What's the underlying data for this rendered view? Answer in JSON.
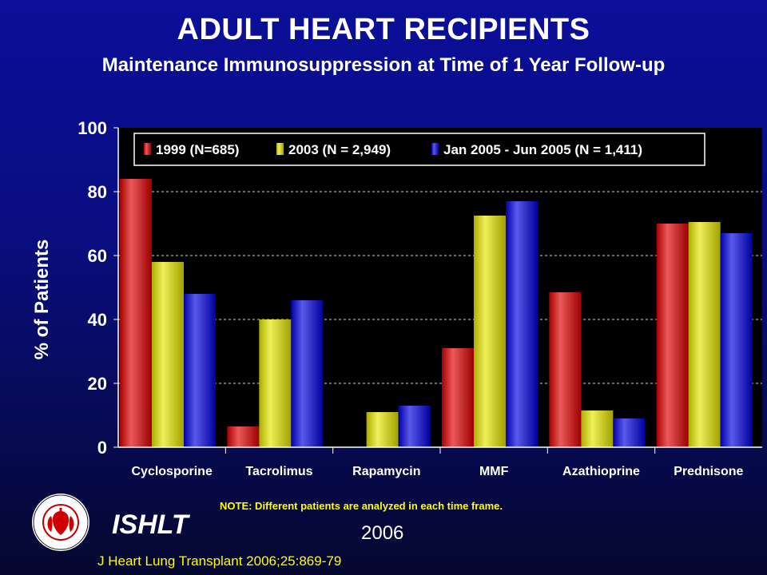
{
  "header": {
    "title": "ADULT HEART RECIPIENTS",
    "subtitle": "Maintenance Immunosuppression at Time of 1 Year Follow-up"
  },
  "footer": {
    "note": "NOTE: Different patients are analyzed in each time frame.",
    "org": "ISHLT",
    "year": "2006",
    "citation": "J Heart Lung Transplant 2006;25:869-79",
    "logo_ring_text": "INTERNATIONAL SOCIETY FOR HEART & LUNG TRANSPLANTATION"
  },
  "colors": {
    "red": "#e00000",
    "yellow": "#e6e600",
    "blue": "#0000e0",
    "plot_bg": "#000000"
  },
  "chart_data": {
    "type": "bar",
    "title": "",
    "xlabel": "",
    "ylabel": "% of Patients",
    "ylim": [
      0,
      100
    ],
    "yticks": [
      0,
      20,
      40,
      60,
      80,
      100
    ],
    "grid": "horizontal dashed",
    "legend_position": "top",
    "categories": [
      "Cyclosporine",
      "Tacrolimus",
      "Rapamycin",
      "MMF",
      "Azathioprine",
      "Prednisone"
    ],
    "series": [
      {
        "name": "1999 (N=685)",
        "color": "#e00000",
        "values": [
          84,
          6.5,
          0,
          31,
          48.5,
          70
        ]
      },
      {
        "name": "2003 (N = 2,949)",
        "color": "#e6e600",
        "values": [
          58,
          40,
          11,
          72.5,
          11.5,
          70.5
        ]
      },
      {
        "name": "Jan 2005 - Jun 2005 (N = 1,411)",
        "color": "#0000e0",
        "values": [
          48,
          46,
          13,
          77,
          9,
          67
        ]
      }
    ]
  }
}
